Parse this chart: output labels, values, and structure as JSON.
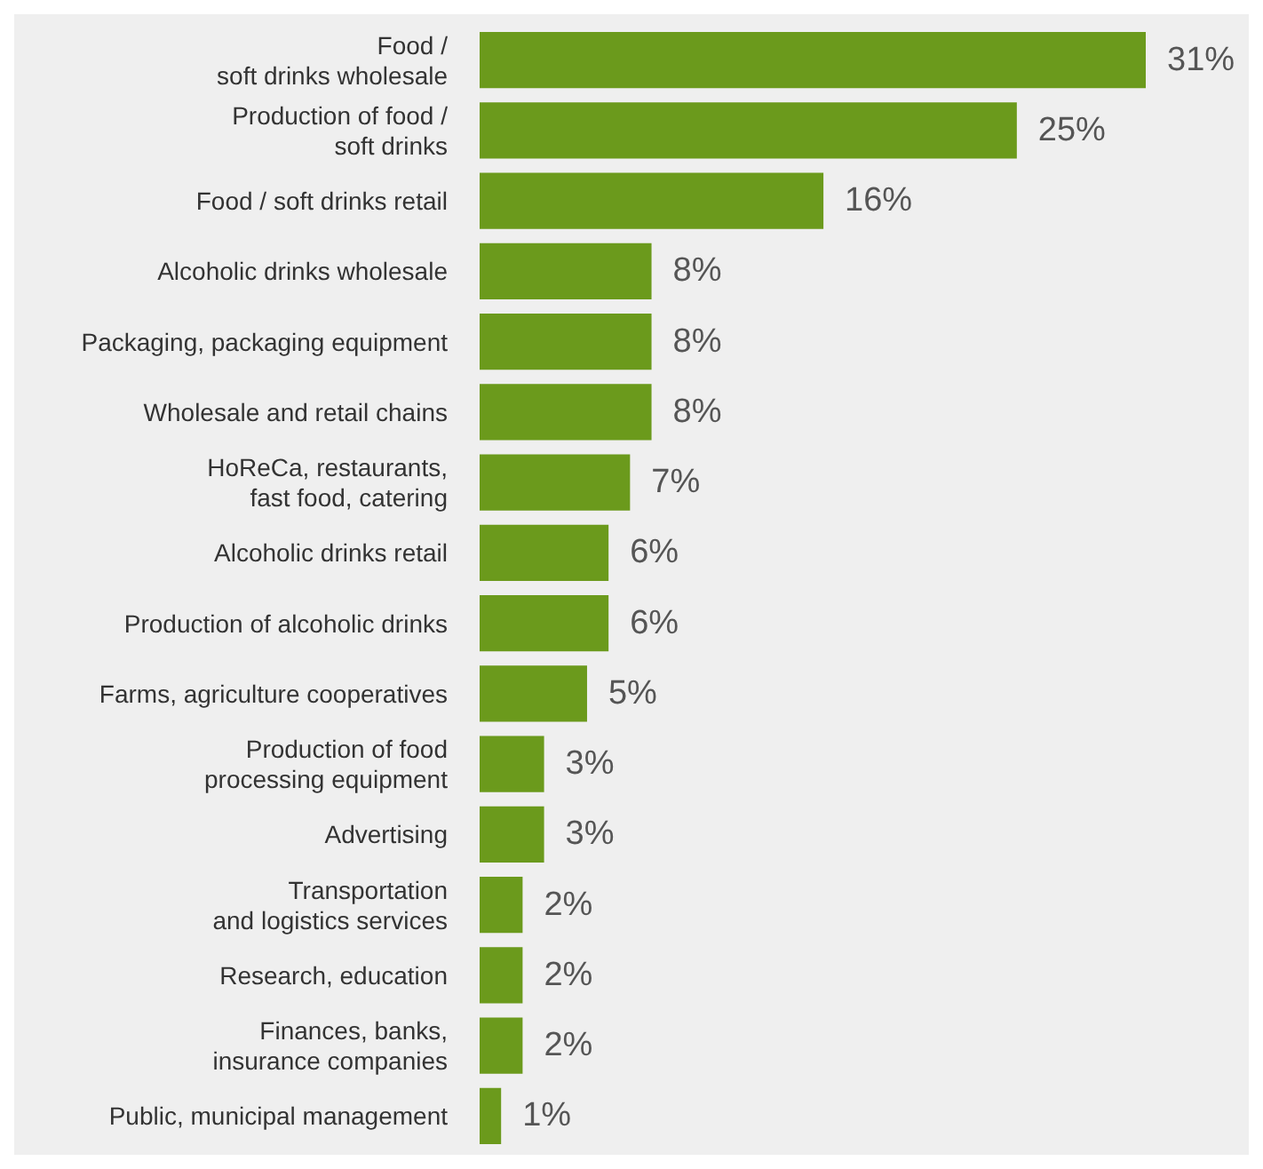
{
  "chart_data": {
    "type": "bar",
    "orientation": "horizontal",
    "categories": [
      "Food /\nsoft drinks wholesale",
      "Production of food /\nsoft drinks",
      "Food / soft drinks retail",
      "Alcoholic drinks wholesale",
      "Packaging, packaging equipment",
      "Wholesale and retail chains",
      "HoReCa, restaurants,\nfast food, catering",
      "Alcoholic drinks retail",
      "Production of alcoholic drinks",
      "Farms, agriculture cooperatives",
      "Production of food\nprocessing equipment",
      "Advertising",
      "Transportation\nand logistics services",
      "Research, education",
      "Finances, banks,\ninsurance companies",
      "Public, municipal management"
    ],
    "values": [
      31,
      25,
      16,
      8,
      8,
      8,
      7,
      6,
      6,
      5,
      3,
      3,
      2,
      2,
      2,
      1
    ],
    "value_labels": [
      "31%",
      "25%",
      "16%",
      "8%",
      "8%",
      "8%",
      "7%",
      "6%",
      "6%",
      "5%",
      "3%",
      "3%",
      "2%",
      "2%",
      "2%",
      "1%"
    ],
    "color": "#6b9a1c"
  }
}
